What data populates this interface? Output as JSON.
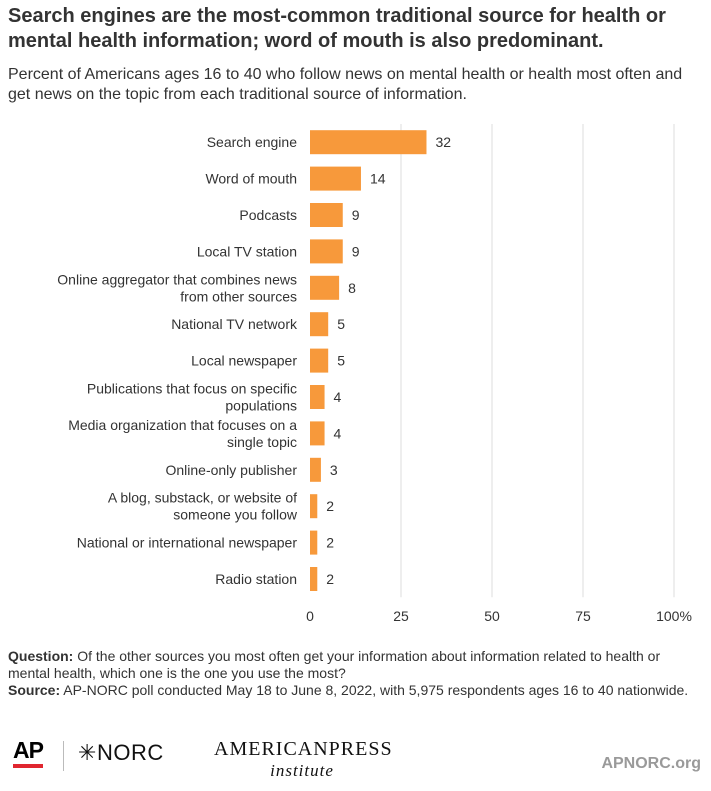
{
  "header": {
    "title": "Search engines are the most-common traditional source for health or mental health information; word of mouth is also predominant.",
    "subtitle": "Percent of Americans ages 16 to 40 who follow news on mental health or health most often and get news on the topic from each traditional source of information."
  },
  "chart_data": {
    "type": "bar",
    "orientation": "horizontal",
    "categories": [
      [
        "Search engine"
      ],
      [
        "Word of mouth"
      ],
      [
        "Podcasts"
      ],
      [
        "Local TV station"
      ],
      [
        "Online aggregator that combines news",
        "from other sources"
      ],
      [
        "National TV network"
      ],
      [
        "Local newspaper"
      ],
      [
        "Publications that focus on specific",
        "populations"
      ],
      [
        "Media organization that focuses on a",
        "single topic"
      ],
      [
        "Online-only publisher"
      ],
      [
        "A blog, substack, or website of",
        "someone you follow"
      ],
      [
        "National or international newspaper"
      ],
      [
        "Radio station"
      ]
    ],
    "values": [
      32,
      14,
      9,
      9,
      8,
      5,
      5,
      4,
      4,
      3,
      2,
      2,
      2
    ],
    "xlim": [
      0,
      100
    ],
    "xticks": [
      0,
      25,
      50,
      75,
      100
    ],
    "xtick_labels": [
      "0",
      "25",
      "50",
      "75",
      "100%"
    ],
    "grid": true,
    "bar_color": "#f7993b",
    "grid_color": "#dddddd"
  },
  "notes": {
    "question_label": "Question:",
    "question_text": "Of the other sources you most often get your information about information related to health or mental health, which one is the one you use the most?",
    "source_label": "Source:",
    "source_text": "AP-NORC poll conducted May 18 to June 8, 2022, with 5,975 respondents ages 16 to 40 nationwide."
  },
  "footer": {
    "ap_logo": "AP",
    "norc_logo": "NORC",
    "api_logo_line1": "AMERICANPRESS",
    "api_logo_line2": "institute",
    "site": "APNORC.org"
  }
}
